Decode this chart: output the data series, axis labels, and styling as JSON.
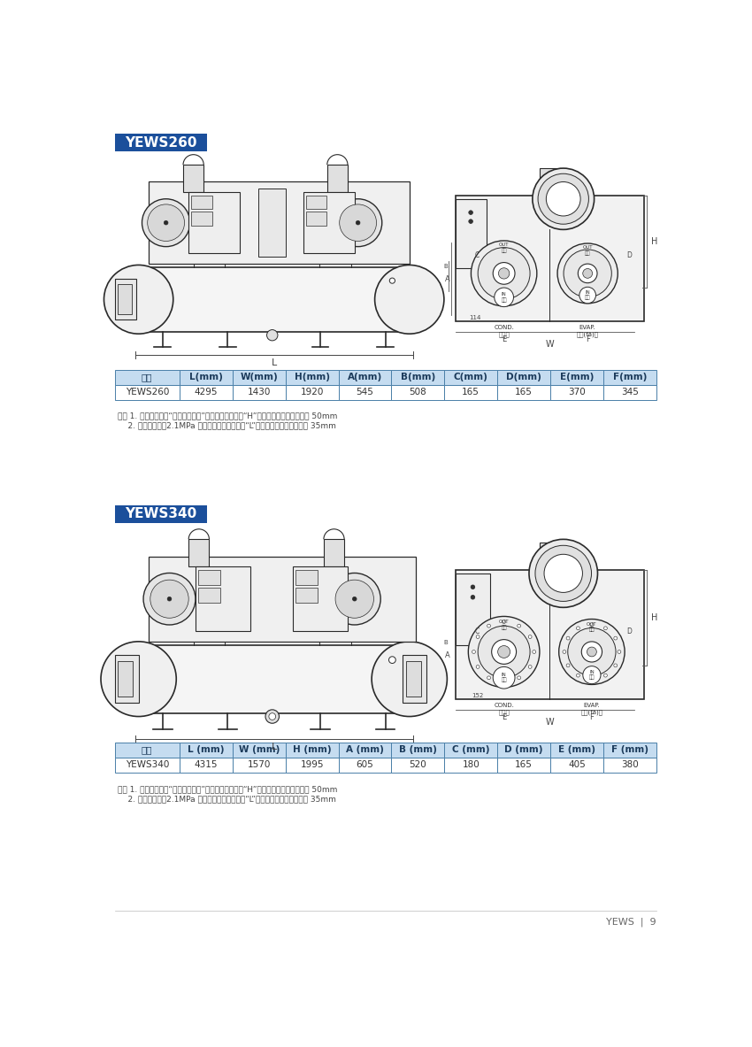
{
  "title1": "YEWS260",
  "title2": "YEWS340",
  "title_bg_color": "#1B4F9B",
  "title_text_color": "#FFFFFF",
  "table1_header": [
    "型号",
    "L(mm)",
    "W(mm)",
    "H(mm)",
    "A(mm)",
    "B(mm)",
    "C(mm)",
    "D(mm)",
    "E(mm)",
    "F(mm)"
  ],
  "table1_row": [
    "YEWS260",
    "4295",
    "1430",
    "1920",
    "545",
    "508",
    "165",
    "165",
    "370",
    "345"
  ],
  "table2_header": [
    "型号",
    "L (mm)",
    "W (mm)",
    "H (mm)",
    "A (mm)",
    "B (mm)",
    "C (mm)",
    "D (mm)",
    "E (mm)",
    "F (mm)"
  ],
  "table2_row": [
    "YEWS340",
    "4315",
    "1570",
    "1995",
    "605",
    "520",
    "180",
    "165",
    "405",
    "380"
  ],
  "note1_line1": "注： 1. 如机组选用了“制冷剂隔离阀”，则每个机组长度“H”在上表尺寸的基础上增加 50mm",
  "note1_line2": "    2. 如机组选用了2.1MPa 水算，则每个机组长度“L”在上表尺寸的基础上增加 35mm",
  "note2_line1": "注： 1. 如机组选用了“制冷剂隔离阀”，则每个机组长度“H”在上表尺寸的基础上增加 50mm",
  "note2_line2": "    2. 如机组选用了2.1MPa 水算，则每个机组长度“L”在上表尺寸的基础上增加 35mm",
  "footer_text": "YEWS  |  9",
  "table_header_bg": "#C5DCF0",
  "table_row_bg": "#FFFFFF",
  "table_border_color": "#4A7FA8",
  "bg_color": "#FFFFFF",
  "line_color": "#2a2a2a",
  "light_gray": "#CCCCCC",
  "mid_gray": "#888888"
}
